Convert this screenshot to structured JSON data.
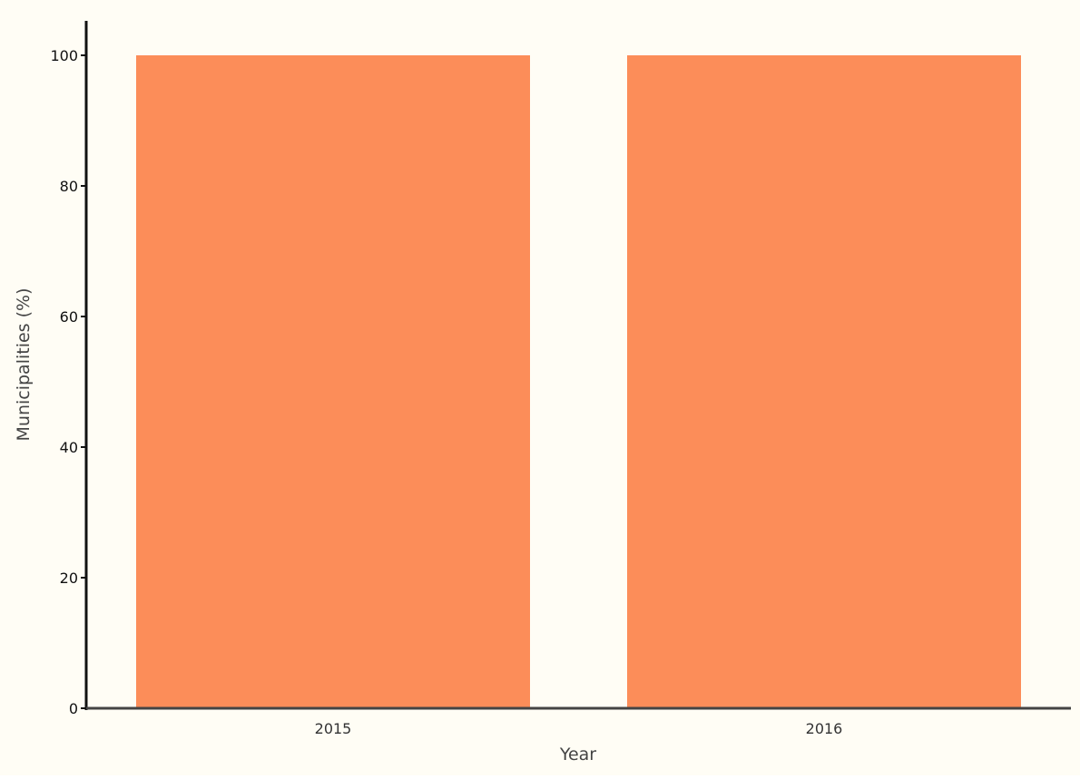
{
  "colors": {
    "plot_background": "#fffdf5",
    "bar": "#fc8d59",
    "axis": "#111111",
    "x_axis": "#444444"
  },
  "chart_data": {
    "type": "bar",
    "title": "",
    "xlabel": "Year",
    "ylabel": "Municipalities (%)",
    "categories": [
      "2015",
      "2016"
    ],
    "values": [
      100,
      100
    ],
    "ylim": [
      0,
      104
    ],
    "yticks": [
      "0",
      "20",
      "40",
      "60",
      "80",
      "100"
    ],
    "grid": false,
    "legend": "none"
  }
}
